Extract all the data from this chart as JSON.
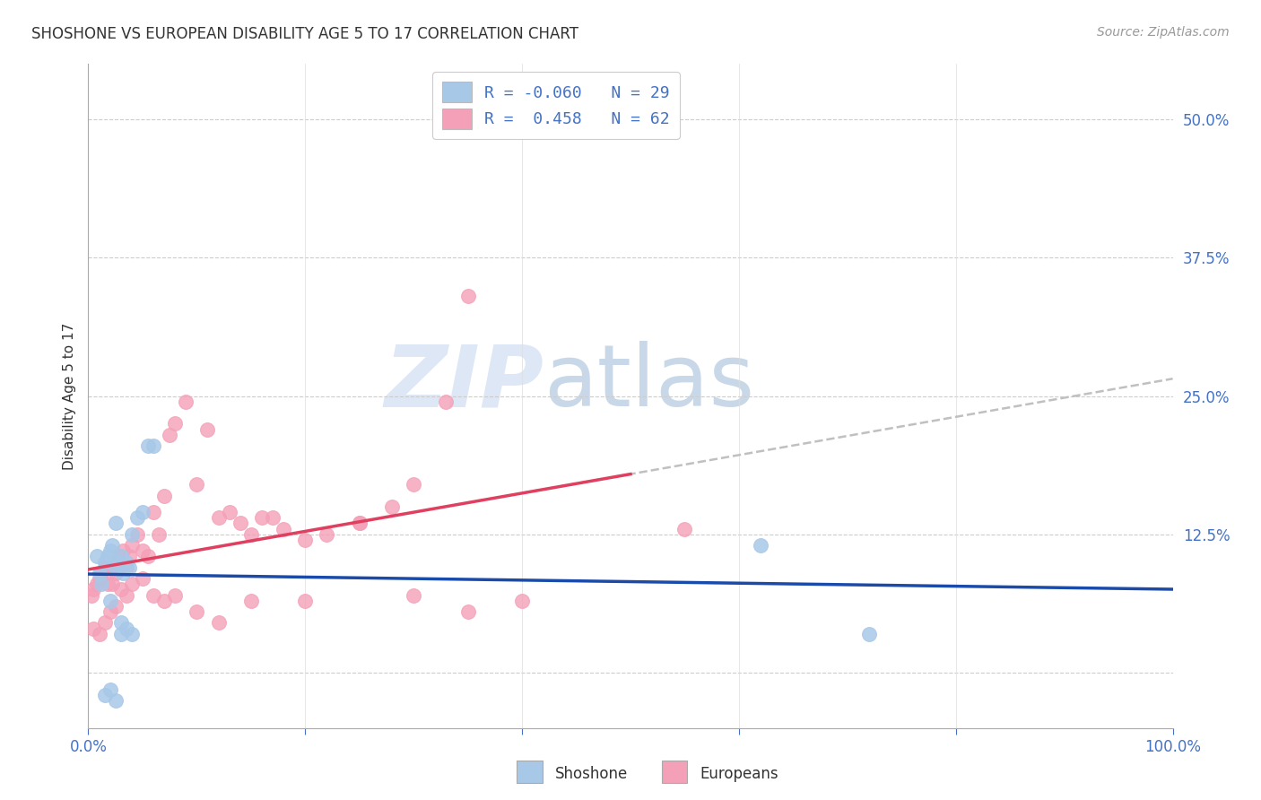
{
  "title": "SHOSHONE VS EUROPEAN DISABILITY AGE 5 TO 17 CORRELATION CHART",
  "source": "Source: ZipAtlas.com",
  "ylabel": "Disability Age 5 to 17",
  "xlim": [
    0,
    100
  ],
  "ylim": [
    -5,
    55
  ],
  "yticks": [
    0,
    12.5,
    25.0,
    37.5,
    50.0
  ],
  "xticks": [
    0,
    20,
    40,
    60,
    80,
    100
  ],
  "shoshone_color": "#a8c8e8",
  "european_color": "#f4a0b8",
  "shoshone_line_color": "#1a4aaa",
  "european_line_color": "#e04060",
  "dashed_color": "#c0c0c0",
  "legend_R1": "-0.060",
  "legend_N1": "29",
  "legend_R2": "0.458",
  "legend_N2": "62",
  "shoshone_x": [
    0.8,
    1.0,
    1.2,
    1.5,
    1.8,
    2.0,
    2.2,
    2.5,
    2.8,
    3.0,
    3.2,
    3.5,
    3.8,
    4.0,
    4.5,
    5.0,
    5.5,
    6.0,
    2.0,
    2.5,
    3.0,
    3.5,
    4.0,
    1.5,
    2.0,
    2.5,
    3.0,
    62.0,
    72.0
  ],
  "shoshone_y": [
    10.5,
    9.0,
    8.0,
    10.0,
    10.5,
    11.0,
    11.5,
    9.5,
    10.0,
    10.5,
    9.0,
    10.0,
    9.5,
    12.5,
    14.0,
    14.5,
    20.5,
    20.5,
    6.5,
    13.5,
    4.5,
    4.0,
    3.5,
    -2.0,
    -1.5,
    -2.5,
    3.5,
    11.5,
    3.5
  ],
  "european_x": [
    0.3,
    0.5,
    0.8,
    1.0,
    1.2,
    1.5,
    1.8,
    2.0,
    2.2,
    2.5,
    2.8,
    3.0,
    3.2,
    3.5,
    3.8,
    4.0,
    4.5,
    5.0,
    5.5,
    6.0,
    6.5,
    7.0,
    7.5,
    8.0,
    9.0,
    10.0,
    11.0,
    12.0,
    13.0,
    14.0,
    15.0,
    16.0,
    17.0,
    18.0,
    20.0,
    22.0,
    25.0,
    28.0,
    30.0,
    33.0,
    35.0,
    55.0,
    0.5,
    1.0,
    1.5,
    2.0,
    2.5,
    3.0,
    3.5,
    4.0,
    5.0,
    6.0,
    7.0,
    8.0,
    10.0,
    12.0,
    15.0,
    20.0,
    25.0,
    30.0,
    35.0,
    40.0
  ],
  "european_y": [
    7.0,
    7.5,
    8.0,
    8.5,
    9.0,
    9.5,
    8.0,
    9.5,
    8.0,
    9.0,
    10.5,
    9.5,
    11.0,
    9.5,
    10.5,
    11.5,
    12.5,
    11.0,
    10.5,
    14.5,
    12.5,
    16.0,
    21.5,
    22.5,
    24.5,
    17.0,
    22.0,
    14.0,
    14.5,
    13.5,
    12.5,
    14.0,
    14.0,
    13.0,
    12.0,
    12.5,
    13.5,
    15.0,
    17.0,
    24.5,
    34.0,
    13.0,
    4.0,
    3.5,
    4.5,
    5.5,
    6.0,
    7.5,
    7.0,
    8.0,
    8.5,
    7.0,
    6.5,
    7.0,
    5.5,
    4.5,
    6.5,
    6.5,
    13.5,
    7.0,
    5.5,
    6.5
  ],
  "shoshone_R": -0.06,
  "european_R": 0.458
}
